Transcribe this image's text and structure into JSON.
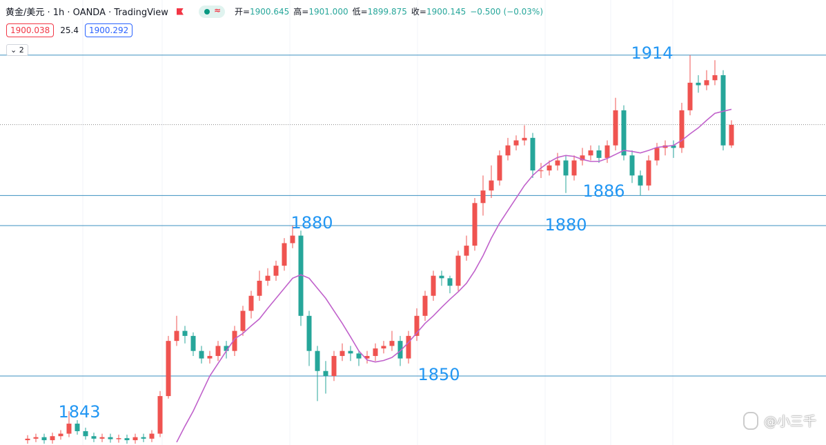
{
  "header": {
    "symbol": "黄金/美元 · 1h · OANDA · TradingView",
    "ohlc": [
      {
        "label": "开=",
        "value": {
          "value": 1900.645,
          "label": "1900.645"
        }
      },
      {
        "label": "高=",
        "value": {
          "value": 1901,
          "label": "1901.000"
        }
      },
      {
        "label": "低=",
        "value": {
          "value": 1899.875,
          "label": "1899.875"
        }
      },
      {
        "label": "收=",
        "value": {
          "value": 1900.145,
          "label": "1900.145"
        }
      }
    ],
    "change": "−0.500 (−0.03%)",
    "bid": "1900.038",
    "spread": "25.4",
    "ask": "1900.292",
    "indicators": "2"
  },
  "watermark": "@小三千",
  "chart_data": {
    "type": "candlestick",
    "ylim": [
      1836.24,
      1925
    ],
    "up_color": "#ef5350",
    "down_color": "#26a69a",
    "open": [
      1837.2,
      1837.5,
      1837.8,
      1837.2,
      1838,
      1838.5,
      1840.5,
      1839,
      1838,
      1837.5,
      1837.8,
      1837.4,
      1837.6,
      1837.2,
      1837.8,
      1837.5,
      1838.5,
      1846,
      1857,
      1859,
      1858,
      1855,
      1853.5,
      1854,
      1856,
      1855,
      1859,
      1863,
      1866,
      1869,
      1870,
      1872,
      1876.5,
      1878,
      1862,
      1855,
      1851,
      1850,
      1854,
      1855,
      1854.5,
      1853.5,
      1854,
      1855.5,
      1856,
      1857,
      1853.5,
      1858,
      1862,
      1866,
      1870,
      1869.5,
      1868,
      1874,
      1876,
      1884.5,
      1887,
      1889,
      1894,
      1896,
      1897,
      1897.5,
      1891,
      1891,
      1892,
      1893,
      1890,
      1893,
      1894,
      1895,
      1893.5,
      1896,
      1903,
      1894,
      1890,
      1888,
      1893,
      1895.5,
      1896,
      1895.5,
      1903,
      1908.5,
      1908,
      1909,
      1910,
      1896
    ],
    "high": [
      1838.2,
      1838.5,
      1838.5,
      1838.7,
      1839.2,
      1843,
      1841.2,
      1839.7,
      1838.7,
      1838.5,
      1838.5,
      1838.3,
      1838.3,
      1838.5,
      1838.5,
      1839.2,
      1847,
      1858,
      1862,
      1860,
      1858.7,
      1856,
      1855,
      1857,
      1857,
      1860,
      1864,
      1867,
      1871,
      1871.5,
      1873,
      1877.5,
      1880,
      1879,
      1863,
      1856,
      1853,
      1855,
      1856.5,
      1856,
      1855,
      1855,
      1856.5,
      1857,
      1859,
      1858,
      1859,
      1863.5,
      1867,
      1871,
      1871,
      1870,
      1875,
      1878,
      1885.5,
      1890,
      1892,
      1895,
      1897.5,
      1898,
      1900,
      1898.5,
      1892.5,
      1893,
      1894.5,
      1894,
      1894,
      1895.5,
      1896,
      1896,
      1897,
      1905.5,
      1904,
      1895,
      1891,
      1894,
      1896.5,
      1897,
      1897,
      1904.5,
      1914,
      1910,
      1911,
      1913,
      1911,
      1901
    ],
    "low": [
      1836.5,
      1836.8,
      1836.5,
      1836.5,
      1837.3,
      1837.8,
      1838.3,
      1837.3,
      1836.8,
      1836.8,
      1836.7,
      1836.7,
      1836.5,
      1836.5,
      1836.8,
      1836.8,
      1837.8,
      1845.5,
      1856,
      1856.5,
      1854,
      1852.5,
      1852.5,
      1853,
      1853.5,
      1854,
      1858,
      1861.5,
      1865,
      1868,
      1869,
      1871,
      1875.5,
      1860,
      1852,
      1845,
      1846.5,
      1849,
      1853,
      1853,
      1852,
      1852.5,
      1853,
      1854.5,
      1855,
      1852,
      1852.5,
      1857,
      1861,
      1865,
      1868,
      1866.5,
      1867,
      1873,
      1875,
      1882,
      1885.5,
      1888,
      1893,
      1895,
      1896,
      1889.5,
      1889.5,
      1890,
      1891,
      1886.5,
      1889,
      1892,
      1893,
      1892.5,
      1892.5,
      1895,
      1893,
      1888.5,
      1886,
      1887,
      1892,
      1894,
      1893.5,
      1894.5,
      1902,
      1906.5,
      1907,
      1908,
      1895,
      1895.5
    ],
    "close": [
      1837.5,
      1837.8,
      1837.2,
      1838,
      1838.5,
      1840.5,
      1839,
      1838,
      1837.5,
      1837.8,
      1837.4,
      1837.6,
      1837.2,
      1837.8,
      1837.5,
      1838.5,
      1846,
      1857,
      1859,
      1858,
      1855,
      1853.5,
      1854,
      1856,
      1855,
      1859,
      1863,
      1866,
      1869,
      1870,
      1872,
      1876.5,
      1878,
      1862,
      1855,
      1851,
      1850,
      1854,
      1855,
      1854.5,
      1853.5,
      1854,
      1855.5,
      1856,
      1857,
      1853.5,
      1858,
      1862,
      1866,
      1870,
      1869.5,
      1868,
      1874,
      1876,
      1884.5,
      1887,
      1889,
      1894,
      1896,
      1897,
      1897.5,
      1891,
      1891,
      1892,
      1893,
      1890,
      1893,
      1894,
      1895,
      1893.5,
      1896,
      1903,
      1894,
      1890,
      1888,
      1893,
      1895.5,
      1896,
      1895.5,
      1903,
      1908.5,
      1908,
      1909,
      1910,
      1896,
      1900.1
    ],
    "ma": {
      "color": "#c061cb",
      "values": [
        null,
        null,
        null,
        null,
        null,
        null,
        null,
        null,
        null,
        null,
        null,
        null,
        null,
        null,
        null,
        null,
        null,
        null,
        1836.8,
        1840,
        1843,
        1846.5,
        1850,
        1852.5,
        1855,
        1857.4,
        1858.5,
        1860,
        1861.4,
        1863.5,
        1865.5,
        1867.5,
        1869.5,
        1870.2,
        1869.5,
        1867.5,
        1865.5,
        1863,
        1860.5,
        1857.8,
        1855,
        1853.2,
        1852.8,
        1853.1,
        1853.7,
        1855,
        1856.7,
        1858.6,
        1860.5,
        1862,
        1863.7,
        1865.3,
        1866.8,
        1868.5,
        1871,
        1874,
        1877.5,
        1880.5,
        1883,
        1885.5,
        1888,
        1890,
        1891.5,
        1892.7,
        1893.6,
        1894,
        1893.8,
        1893.2,
        1892.8,
        1892.8,
        1893.4,
        1894.2,
        1895,
        1894.8,
        1894.5,
        1895,
        1895.6,
        1895.8,
        1896,
        1897,
        1898.3,
        1899.5,
        1901,
        1902.4,
        1902.8,
        1903.2
      ]
    },
    "levels": [
      1914,
      1886,
      1880,
      1850
    ],
    "level_color": "#3a8fbf",
    "annotations": [
      1914,
      1886,
      1880,
      1880,
      1850,
      1843
    ],
    "annotation_color": "#2196f3"
  }
}
